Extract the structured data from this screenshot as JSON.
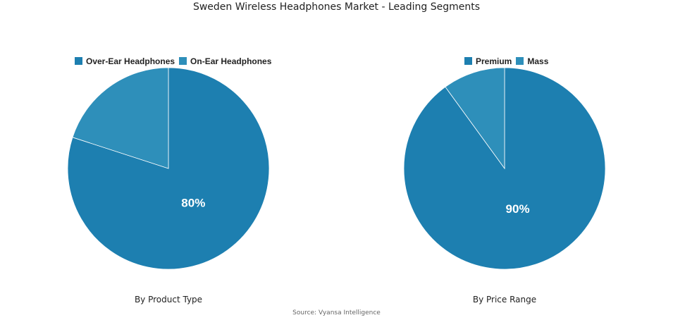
{
  "title": "Sweden Wireless Headphones Market - Leading Segments",
  "source": "Source: Vyansa Intelligence",
  "colors": {
    "major": "#1d7fb0",
    "minor": "#2e8fba"
  },
  "chart_data": [
    {
      "type": "pie",
      "subtitle": "By Product Type",
      "labels": [
        "Over-Ear Headphones",
        "On-Ear Headphones"
      ],
      "values": [
        80,
        20
      ],
      "data_labels": [
        "80%",
        ""
      ]
    },
    {
      "type": "pie",
      "subtitle": "By Price Range",
      "labels": [
        "Premium",
        "Mass"
      ],
      "values": [
        90,
        10
      ],
      "data_labels": [
        "90%",
        ""
      ]
    }
  ]
}
